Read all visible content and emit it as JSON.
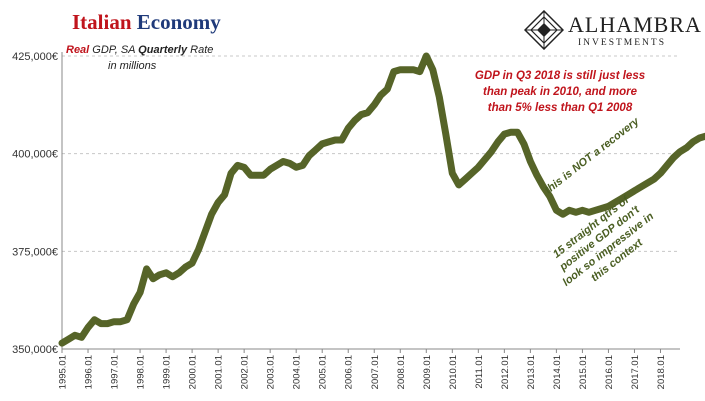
{
  "header": {
    "title_part1": "Italian",
    "title_part2": "Economy",
    "subtitle_red": "Real",
    "subtitle_mid": " GDP, SA ",
    "subtitle_bold": "Quarterly",
    "subtitle_end": " Rate",
    "subtitle_line2": "in millions"
  },
  "logo": {
    "name": "ALHAMBRA",
    "sub": "INVESTMENTS"
  },
  "annotations": {
    "red_line1": "GDP in Q3 2018 is still just less",
    "red_line2": "than peak in 2010, and more",
    "red_line3": "than 5% less than Q1 2008",
    "green_1": "this is NOT a recovery",
    "green_2_line1": "15 straight qtrs of",
    "green_2_line2": "positive GDP don't",
    "green_2_line3": "look so impressive in",
    "green_2_line4": "this context"
  },
  "colors": {
    "line": "#566428",
    "title_red": "#c0141c",
    "title_blue": "#1f3a7a",
    "annotation_green": "#4a5e22",
    "grid": "#c8c8c8"
  },
  "chart_data": {
    "type": "line",
    "ylim": [
      350000,
      425000
    ],
    "y_ticks": [
      350000,
      375000,
      400000,
      425000
    ],
    "y_tick_labels": [
      "350,000€",
      "375,000€",
      "400,000€",
      "425,000€"
    ],
    "x_tick_labels": [
      "1995.01",
      "1996.01",
      "1997.01",
      "1998.01",
      "1999.01",
      "2000.01",
      "2001.01",
      "2002.01",
      "2003.01",
      "2004.01",
      "2005.01",
      "2006.01",
      "2007.01",
      "2008.01",
      "2009.01",
      "2010.01",
      "2011.01",
      "2012.01",
      "2013.01",
      "2014.01",
      "2015.01",
      "2016.01",
      "2017.01",
      "2018.01"
    ],
    "grid": "horizontal dashed",
    "legend": "none",
    "series": [
      {
        "x_start": "1995.01",
        "frequency": "quarterly",
        "values": [
          351500,
          352500,
          353500,
          353000,
          355500,
          357500,
          356500,
          356500,
          357000,
          357000,
          357500,
          361500,
          364500,
          370500,
          368000,
          369000,
          369500,
          368500,
          369500,
          371000,
          372000,
          375500,
          380000,
          384500,
          387500,
          389500,
          395000,
          397000,
          396500,
          394500,
          394500,
          394500,
          396000,
          397000,
          398000,
          397500,
          396500,
          397000,
          399500,
          401000,
          402500,
          403000,
          403500,
          403500,
          406500,
          408500,
          410000,
          410500,
          412500,
          415000,
          416500,
          421000,
          421500,
          421500,
          421500,
          421000,
          425000,
          421500,
          414500,
          405000,
          395000,
          392000,
          393500,
          395000,
          396500,
          398500,
          400500,
          403000,
          405000,
          405500,
          405500,
          402500,
          398000,
          394500,
          391500,
          389000,
          385500,
          384500,
          385500,
          385000,
          385500,
          385000,
          385500,
          386000,
          386500,
          387500,
          388500,
          389500,
          390500,
          391500,
          392500,
          393500,
          395000,
          397000,
          399000,
          400500,
          401500,
          403000,
          404000,
          404500,
          404500
        ]
      }
    ]
  }
}
